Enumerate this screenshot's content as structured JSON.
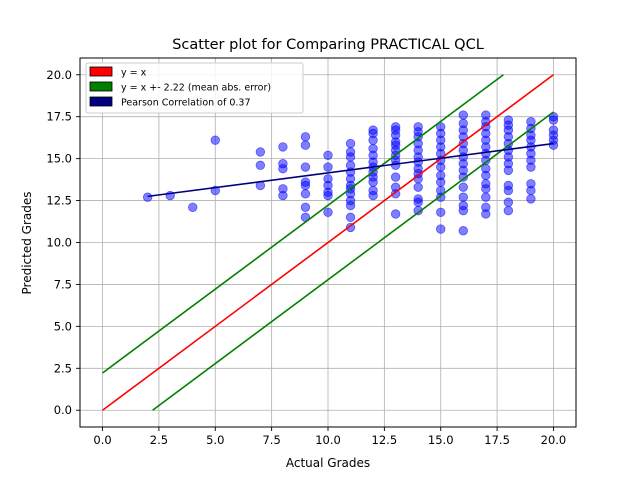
{
  "chart_data": {
    "type": "scatter",
    "title": "Scatter plot for Comparing PRACTICAL QCL",
    "xlabel": "Actual Grades",
    "ylabel": "Predicted Grades",
    "xlim": [
      -1,
      21
    ],
    "ylim": [
      -1,
      21
    ],
    "xticks": [
      0,
      2.5,
      5,
      7.5,
      10,
      12.5,
      15,
      17.5,
      20
    ],
    "xtick_labels": [
      "0.0",
      "2.5",
      "5.0",
      "7.5",
      "10.0",
      "12.5",
      "15.0",
      "17.5",
      "20.0"
    ],
    "yticks": [
      0,
      2.5,
      5,
      7.5,
      10,
      12.5,
      15,
      17.5,
      20
    ],
    "ytick_labels": [
      "0.0",
      "2.5",
      "5.0",
      "7.5",
      "10.0",
      "12.5",
      "15.0",
      "17.5",
      "20.0"
    ],
    "grid": true,
    "legend_position": "top-left",
    "mean_abs_error": 2.22,
    "pearson_correlation": 0.37,
    "colors": {
      "points": "#0000ff",
      "identity": "#ff0000",
      "error_band": "#008000",
      "correlation": "#00007f"
    },
    "legend": [
      {
        "label": "y = x",
        "color": "#ff0000"
      },
      {
        "label": "y = x +- 2.22 (mean abs. error)",
        "color": "#008000"
      },
      {
        "label": "Pearson Correlation of 0.37",
        "color": "#00007f"
      }
    ],
    "lines": [
      {
        "name": "y = x",
        "color": "#ff0000",
        "points": [
          [
            0,
            0
          ],
          [
            20,
            20
          ]
        ]
      },
      {
        "name": "upper",
        "color": "#008000",
        "points": [
          [
            0,
            2.22
          ],
          [
            17.78,
            20
          ]
        ]
      },
      {
        "name": "lower",
        "color": "#008000",
        "points": [
          [
            2.22,
            0
          ],
          [
            20,
            17.78
          ]
        ]
      },
      {
        "name": "correlation",
        "color": "#00007f",
        "points": [
          [
            2,
            12.75
          ],
          [
            20,
            15.9
          ]
        ]
      }
    ],
    "points": [
      [
        2,
        12.7
      ],
      [
        3,
        12.8
      ],
      [
        4,
        12.1
      ],
      [
        5,
        13.1
      ],
      [
        5,
        16.1
      ],
      [
        7,
        13.4
      ],
      [
        7,
        14.6
      ],
      [
        7,
        15.4
      ],
      [
        8,
        12.8
      ],
      [
        8,
        13.2
      ],
      [
        8,
        14.4
      ],
      [
        8,
        14.7
      ],
      [
        8,
        15.7
      ],
      [
        9,
        11.5
      ],
      [
        9,
        12.1
      ],
      [
        9,
        12.9
      ],
      [
        9,
        13.4
      ],
      [
        9,
        13.6
      ],
      [
        9,
        14.5
      ],
      [
        9,
        15.8
      ],
      [
        9,
        16.3
      ],
      [
        10,
        11.8
      ],
      [
        10,
        12.8
      ],
      [
        10,
        13.0
      ],
      [
        10,
        13.4
      ],
      [
        10,
        13.8
      ],
      [
        10,
        14.5
      ],
      [
        10,
        15.2
      ],
      [
        11,
        10.9
      ],
      [
        11,
        11.5
      ],
      [
        11,
        12.2
      ],
      [
        11,
        12.5
      ],
      [
        11,
        12.9
      ],
      [
        11,
        13.2
      ],
      [
        11,
        13.4
      ],
      [
        11,
        13.8
      ],
      [
        11,
        14.2
      ],
      [
        11,
        14.6
      ],
      [
        11,
        15.1
      ],
      [
        11,
        15.4
      ],
      [
        11,
        15.9
      ],
      [
        12,
        12.8
      ],
      [
        12,
        13.1
      ],
      [
        12,
        13.6
      ],
      [
        12,
        13.9
      ],
      [
        12,
        14.2
      ],
      [
        12,
        14.5
      ],
      [
        12,
        14.8
      ],
      [
        12,
        15.2
      ],
      [
        12,
        15.6
      ],
      [
        12,
        16.1
      ],
      [
        12,
        16.5
      ],
      [
        12,
        16.7
      ],
      [
        13,
        11.7
      ],
      [
        13,
        12.9
      ],
      [
        13,
        13.3
      ],
      [
        13,
        13.9
      ],
      [
        13,
        14.6
      ],
      [
        13,
        14.9
      ],
      [
        13,
        15.2
      ],
      [
        13,
        15.5
      ],
      [
        13,
        15.8
      ],
      [
        13,
        16.0
      ],
      [
        13,
        16.4
      ],
      [
        13,
        16.7
      ],
      [
        13,
        16.9
      ],
      [
        14,
        11.9
      ],
      [
        14,
        12.4
      ],
      [
        14,
        12.6
      ],
      [
        14,
        13.3
      ],
      [
        14,
        13.8
      ],
      [
        14,
        14.1
      ],
      [
        14,
        14.4
      ],
      [
        14,
        14.8
      ],
      [
        14,
        15.1
      ],
      [
        14,
        15.5
      ],
      [
        14,
        15.9
      ],
      [
        14,
        16.3
      ],
      [
        14,
        16.6
      ],
      [
        14,
        16.9
      ],
      [
        15,
        10.8
      ],
      [
        15,
        11.8
      ],
      [
        15,
        12.7
      ],
      [
        15,
        13.1
      ],
      [
        15,
        13.6
      ],
      [
        15,
        14.0
      ],
      [
        15,
        14.5
      ],
      [
        15,
        14.9
      ],
      [
        15,
        15.3
      ],
      [
        15,
        15.7
      ],
      [
        15,
        16.1
      ],
      [
        15,
        16.5
      ],
      [
        15,
        16.9
      ],
      [
        16,
        10.7
      ],
      [
        16,
        11.9
      ],
      [
        16,
        12.2
      ],
      [
        16,
        12.7
      ],
      [
        16,
        13.3
      ],
      [
        16,
        13.9
      ],
      [
        16,
        14.3
      ],
      [
        16,
        14.7
      ],
      [
        16,
        15.1
      ],
      [
        16,
        15.5
      ],
      [
        16,
        15.9
      ],
      [
        16,
        16.3
      ],
      [
        16,
        16.7
      ],
      [
        16,
        17.1
      ],
      [
        16,
        17.6
      ],
      [
        17,
        11.7
      ],
      [
        17,
        12.1
      ],
      [
        17,
        12.7
      ],
      [
        17,
        13.2
      ],
      [
        17,
        13.5
      ],
      [
        17,
        14.0
      ],
      [
        17,
        14.4
      ],
      [
        17,
        14.9
      ],
      [
        17,
        15.3
      ],
      [
        17,
        15.7
      ],
      [
        17,
        16.1
      ],
      [
        17,
        16.5
      ],
      [
        17,
        16.9
      ],
      [
        17,
        17.2
      ],
      [
        17,
        17.6
      ],
      [
        18,
        11.9
      ],
      [
        18,
        12.4
      ],
      [
        18,
        13.1
      ],
      [
        18,
        13.4
      ],
      [
        18,
        14.3
      ],
      [
        18,
        14.7
      ],
      [
        18,
        15.1
      ],
      [
        18,
        15.5
      ],
      [
        18,
        15.9
      ],
      [
        18,
        16.3
      ],
      [
        18,
        16.7
      ],
      [
        18,
        17.0
      ],
      [
        18,
        17.3
      ],
      [
        19,
        12.6
      ],
      [
        19,
        13.1
      ],
      [
        19,
        13.5
      ],
      [
        19,
        14.5
      ],
      [
        19,
        14.9
      ],
      [
        19,
        15.3
      ],
      [
        19,
        15.7
      ],
      [
        19,
        16.1
      ],
      [
        19,
        16.4
      ],
      [
        19,
        16.8
      ],
      [
        19,
        17.2
      ],
      [
        20,
        15.8
      ],
      [
        20,
        16.1
      ],
      [
        20,
        16.4
      ],
      [
        20,
        16.7
      ],
      [
        20,
        17.3
      ],
      [
        20,
        17.5
      ]
    ]
  }
}
